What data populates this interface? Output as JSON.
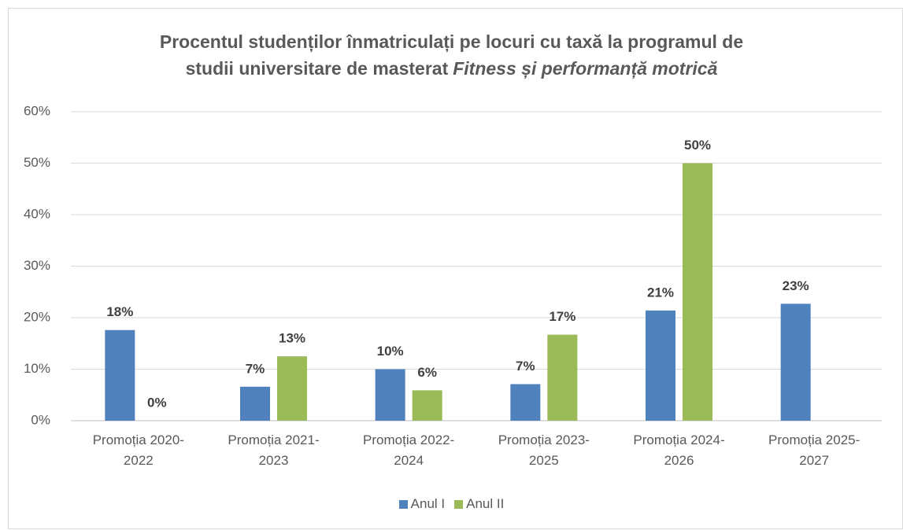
{
  "chart_data": {
    "type": "bar",
    "title": {
      "line1": "Procentul studenților înmatriculați pe locuri cu taxă la programul de",
      "line2": "studii universitare de masterat",
      "emphasis": "Fitness și performanță motrică"
    },
    "categories": [
      "Promoția 2020-2022",
      "Promoția 2021-2023",
      "Promoția 2022-2024",
      "Promoția 2023-2025",
      "Promoția 2024-2026",
      "Promoția 2025-2027"
    ],
    "series": [
      {
        "name": "Anul I",
        "color": "#4f81bd",
        "values": [
          17.6,
          6.6,
          10,
          7.1,
          21.4,
          22.7
        ],
        "value_labels": [
          "18%",
          "7%",
          "10%",
          "7%",
          "21%",
          "23%"
        ]
      },
      {
        "name": "Anul II",
        "color": "#9bbb59",
        "values": [
          0,
          12.5,
          5.9,
          16.7,
          50,
          null
        ],
        "value_labels": [
          "0%",
          "13%",
          "6%",
          "17%",
          "50%",
          null
        ]
      }
    ],
    "ylim": [
      0,
      60
    ],
    "yticks": [
      {
        "value": 0,
        "label": "0%"
      },
      {
        "value": 10,
        "label": "10%"
      },
      {
        "value": 20,
        "label": "20%"
      },
      {
        "value": 30,
        "label": "30%"
      },
      {
        "value": 40,
        "label": "40%"
      },
      {
        "value": 50,
        "label": "50%"
      },
      {
        "value": 60,
        "label": "60%"
      }
    ],
    "grid": true,
    "legend": "bottom"
  }
}
